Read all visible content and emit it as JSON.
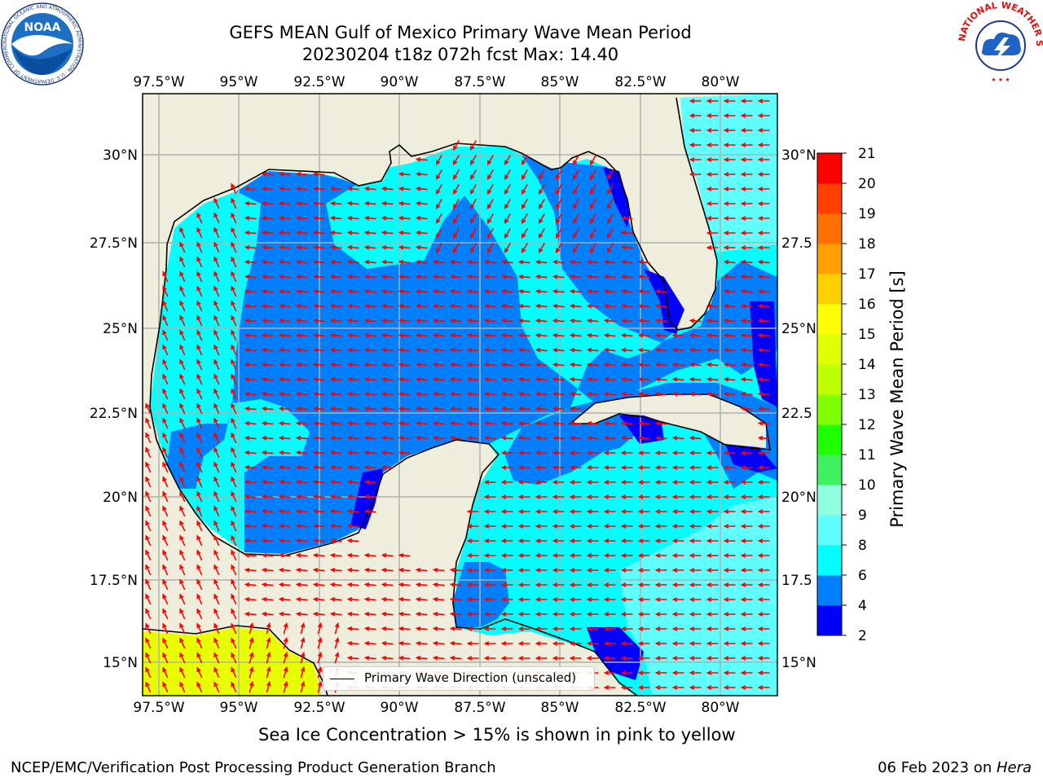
{
  "title": {
    "line1": "GEFS MEAN Gulf of Mexico Primary Wave Mean Period",
    "line2": "20230204 t18z 072h fcst   Max: 14.40"
  },
  "logos": {
    "noaa": {
      "text": "NOAA",
      "ring_text": "NATIONAL OCEANIC AND ATMOSPHERIC ADMINISTRATION · U.S. DEPARTMENT OF COMMERCE"
    },
    "nws": {
      "ring_text": "NATIONAL WEATHER SERVICE"
    }
  },
  "map": {
    "lon_labels": [
      "97.5°W",
      "95°W",
      "92.5°W",
      "90°W",
      "87.5°W",
      "85°W",
      "82.5°W",
      "80°W"
    ],
    "lat_labels_left": [
      "30°N",
      "27.5°N",
      "25°N",
      "22.5°N",
      "20°N",
      "17.5°N",
      "15°N"
    ],
    "lat_labels_right": [
      "30°N",
      "27.5",
      "25°N",
      "22.5",
      "20°N",
      "17.5",
      "15°N"
    ],
    "extent": {
      "lon_min": -98,
      "lon_max": -78.3,
      "lat_min": 14.0,
      "lat_max": 31.8
    },
    "colors": {
      "land": "#efeedc",
      "grid": "#b0b0b0",
      "arrow": "#ff0000",
      "coast": "#000000"
    }
  },
  "legend": {
    "label": "Primary Wave Direction (unscaled)"
  },
  "colorbar": {
    "label": "Primary Wave Mean Period [s]",
    "ticks": [
      "2",
      "4",
      "6",
      "8",
      "9",
      "10",
      "11",
      "12",
      "13",
      "14",
      "15",
      "16",
      "17",
      "18",
      "19",
      "20",
      "21"
    ],
    "colors": [
      "#0000ff",
      "#0080ff",
      "#00ffff",
      "#60ffff",
      "#90ffe0",
      "#40f060",
      "#20ff00",
      "#80ff00",
      "#c0ff00",
      "#e0ff00",
      "#ffff00",
      "#ffd000",
      "#ffa000",
      "#ff7000",
      "#ff4000",
      "#ff0000"
    ]
  },
  "caption": "Sea Ice Concentration > 15% is shown in pink to yellow",
  "footer": {
    "left": "NCEP/EMC/Verification Post Processing Product Generation Branch",
    "right_prefix": "06 Feb 2023 on ",
    "right_host": "Hera"
  }
}
